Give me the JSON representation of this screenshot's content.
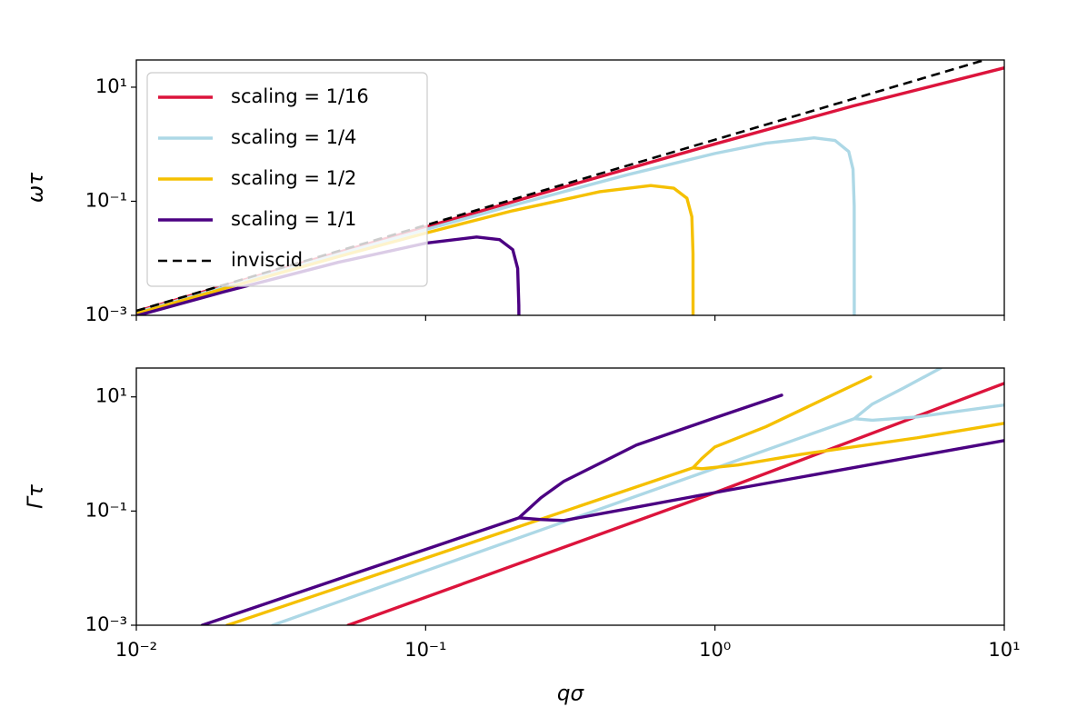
{
  "chart_data": [
    {
      "type": "line",
      "ylabel": "ωτ",
      "xscale": "log",
      "yscale": "log",
      "xlim": [
        0.01,
        10
      ],
      "ylim": [
        0.001,
        30
      ],
      "xticks": [
        0.01,
        0.1,
        1,
        10
      ],
      "xticklabels": false,
      "yticks": [
        {
          "value": 0.001,
          "label": "10⁻³"
        },
        {
          "value": 0.1,
          "label": "10⁻¹"
        },
        {
          "value": 10,
          "label": "10¹"
        }
      ],
      "legend": "upper left",
      "series": [
        {
          "name": "scaling = 1/16",
          "color": "#dc143c",
          "linestyle": "solid",
          "x": [
            0.01,
            0.03,
            0.1,
            0.3,
            1,
            3,
            10
          ],
          "values": [
            0.00117,
            0.00597,
            0.0354,
            0.1775,
            1.01,
            4.68,
            21.8
          ]
        },
        {
          "name": "scaling = 1/4",
          "color": "#add8e6",
          "linestyle": "solid",
          "x": [
            0.01,
            0.02,
            0.05,
            0.1,
            0.2,
            0.5,
            1,
            1.5,
            2.2,
            2.6,
            2.9,
            3.0,
            3.0285,
            3.03
          ],
          "values": [
            0.00112,
            0.0031,
            0.0118,
            0.0319,
            0.0848,
            0.293,
            0.689,
            1.043,
            1.292,
            1.165,
            0.742,
            0.365,
            0.0829,
            0.001
          ]
        },
        {
          "name": "scaling = 1/2",
          "color": "#f5c000",
          "linestyle": "solid",
          "x": [
            0.01,
            0.02,
            0.05,
            0.1,
            0.2,
            0.4,
            0.6,
            0.72,
            0.8,
            0.832,
            0.8396,
            0.84
          ],
          "values": [
            0.00107,
            0.00292,
            0.01072,
            0.0277,
            0.0682,
            0.147,
            0.1885,
            0.17,
            0.113,
            0.0534,
            0.0121,
            0.001
          ]
        },
        {
          "name": "scaling = 1/1",
          "color": "#4b0082",
          "linestyle": "solid",
          "x": [
            0.01,
            0.02,
            0.05,
            0.1,
            0.15,
            0.18,
            0.2,
            0.208,
            0.2099,
            0.21
          ],
          "values": [
            0.00098,
            0.00257,
            0.00853,
            0.0184,
            0.0236,
            0.0213,
            0.0142,
            0.00667,
            0.00151,
            0.001
          ]
        },
        {
          "name": "inviscid",
          "color": "#000000",
          "linestyle": "dashed",
          "x": [
            0.01,
            0.1,
            1,
            8.5
          ],
          "values": [
            0.0012,
            0.038,
            1.2,
            29.7
          ]
        }
      ]
    },
    {
      "type": "line",
      "xlabel": "qσ",
      "ylabel": "Γτ",
      "xscale": "log",
      "yscale": "log",
      "xlim": [
        0.01,
        10
      ],
      "ylim": [
        0.001,
        32
      ],
      "xticks": [
        {
          "value": 0.01,
          "label": "10⁻²"
        },
        {
          "value": 0.1,
          "label": "10⁻¹"
        },
        {
          "value": 1,
          "label": "10⁰"
        },
        {
          "value": 10,
          "label": "10¹"
        }
      ],
      "yticks": [
        {
          "value": 0.001,
          "label": "10⁻³"
        },
        {
          "value": 0.1,
          "label": "10⁻¹"
        },
        {
          "value": 10,
          "label": "10¹"
        }
      ],
      "series": [
        {
          "color": "#dc143c",
          "linestyle": "solid",
          "x": [
            0.054,
            1,
            10
          ],
          "values": [
            0.001,
            0.21,
            17.3
          ]
        },
        {
          "color": "#add8e6",
          "linestyle": "solid",
          "x": [
            0.0296,
            0.1,
            0.84,
            3.03,
            3.5,
            4.5,
            6.03,
            null,
            3.03,
            3.5,
            5,
            10
          ],
          "values": [
            0.001,
            0.00895,
            0.41,
            4.15,
            7.5,
            14.4,
            32,
            null,
            4.15,
            3.9,
            4.46,
            7.2
          ]
        },
        {
          "color": "#f5c000",
          "linestyle": "solid",
          "x": [
            0.0206,
            0.84,
            0.9,
            1,
            1.5,
            3.45,
            null,
            0.84,
            0.9,
            1.2,
            2,
            5,
            10
          ],
          "values": [
            0.001,
            0.573,
            0.83,
            1.33,
            3.0,
            22.4,
            null,
            0.573,
            0.55,
            0.64,
            0.99,
            1.92,
            3.45
          ]
        },
        {
          "color": "#4b0082",
          "linestyle": "solid",
          "x": [
            0.0169,
            0.05,
            0.21,
            0.25,
            0.3,
            0.535,
            1.0,
            1.7,
            null,
            0.21,
            0.25,
            0.3,
            0.5,
            1.1,
            10
          ],
          "values": [
            0.001,
            0.00646,
            0.076,
            0.17,
            0.33,
            1.43,
            4.3,
            10.7,
            null,
            0.076,
            0.071,
            0.0683,
            0.11,
            0.23,
            1.72
          ]
        }
      ]
    }
  ]
}
